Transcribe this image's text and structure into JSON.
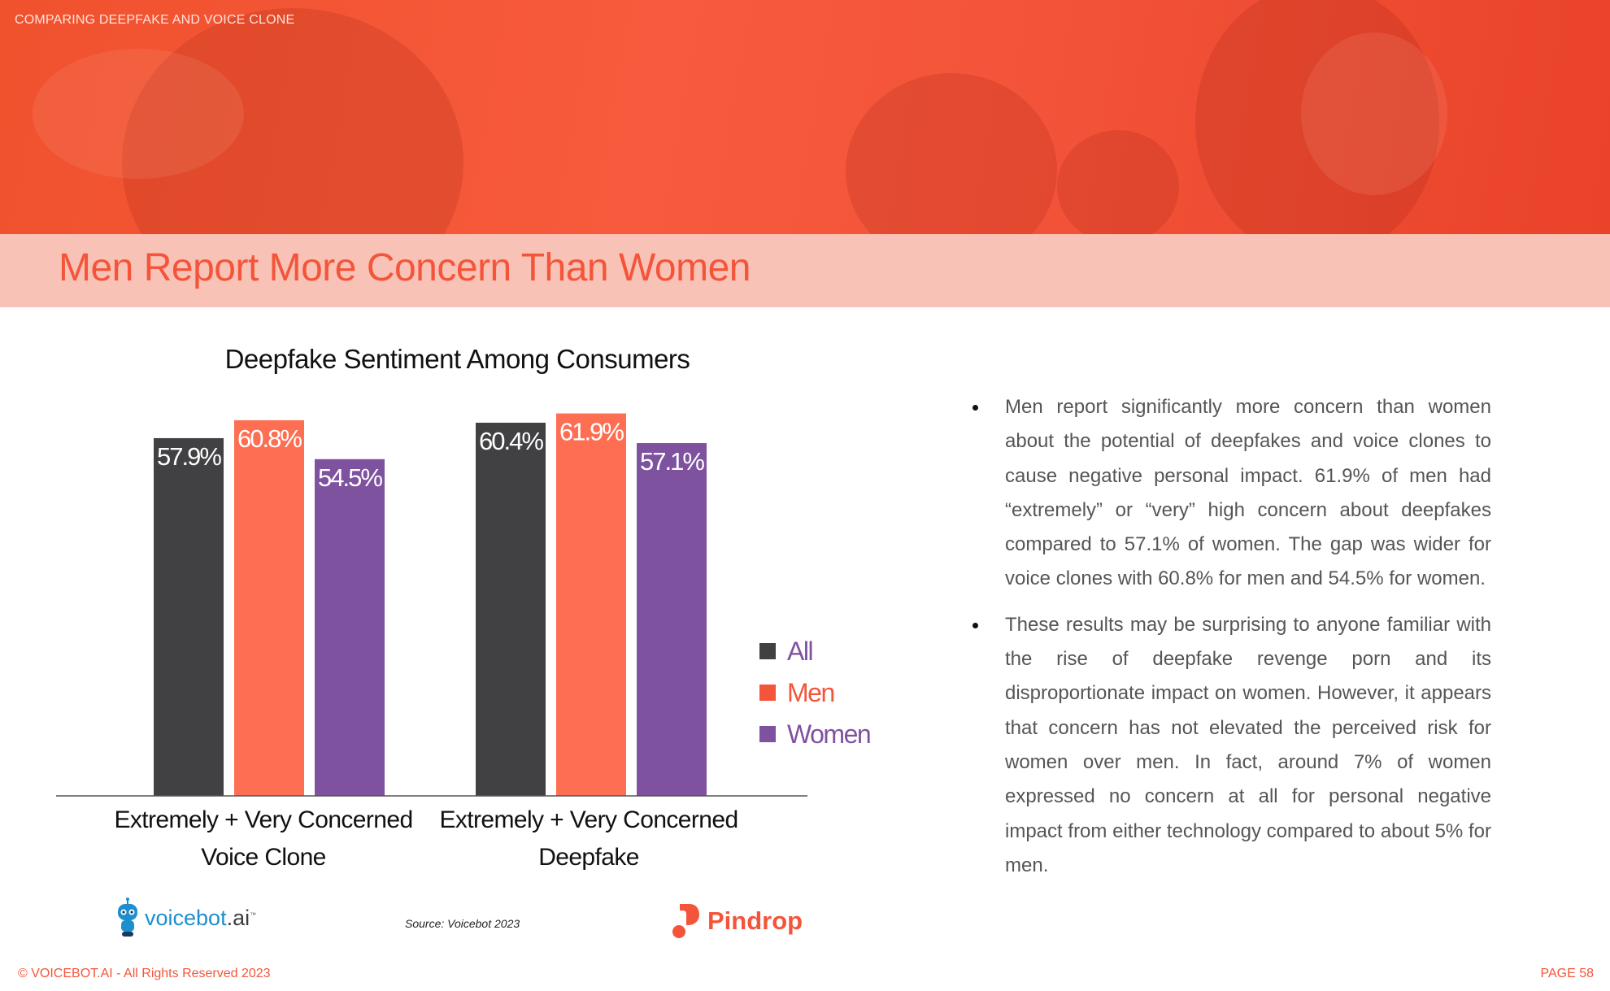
{
  "header": {
    "section_label": "COMPARING DEEPFAKE AND VOICE CLONE",
    "page_title": "Men Report More Concern Than Women"
  },
  "chart_data": {
    "type": "bar",
    "title": "Deepfake Sentiment Among Consumers",
    "categories": [
      [
        "Extremely + Very Concerned",
        "Voice Clone"
      ],
      [
        "Extremely + Very Concerned",
        "Deepfake"
      ]
    ],
    "series": [
      {
        "name": "All",
        "values": [
          57.9,
          60.4
        ],
        "labels": [
          "57.9%",
          "60.4%"
        ],
        "color": "#414042"
      },
      {
        "name": "Men",
        "values": [
          60.8,
          61.9
        ],
        "labels": [
          "60.8%",
          "61.9%"
        ],
        "color": "#f4553a"
      },
      {
        "name": "Women",
        "values": [
          54.5,
          57.1
        ],
        "labels": [
          "54.5%",
          "57.1%"
        ],
        "color": "#7f52a0"
      }
    ],
    "legend_placement": "right",
    "grid": false,
    "y_axis_visible": false
  },
  "colors": {
    "accent": "#f4553a",
    "men_bar": "#fe6e52",
    "all_label": "#7f52a0",
    "women_label": "#7f52a0"
  },
  "source": "Source: Voicebot 2023",
  "logos": {
    "voicebot": {
      "name": "voicebot",
      "suffix": ".ai",
      "mark": "™"
    },
    "pindrop": "Pindrop"
  },
  "bullets": [
    "Men report significantly more concern than women about the potential of deepfakes and voice clones to cause negative personal impact. 61.9% of men had “extremely” or “very” high concern about deepfakes compared to 57.1% of women. The gap was wider for voice clones with 60.8% for men and 54.5% for women.",
    "These results may be surprising to anyone familiar with the rise of deepfake revenge porn and its disproportionate impact on women. However, it appears that concern has not elevated the perceived risk for women over men. In fact, around 7% of women expressed no concern at all for personal negative impact from either technology compared to about 5% for men."
  ],
  "footer": {
    "copyright": "© VOICEBOT.AI - All Rights Reserved 2023",
    "page": "PAGE 58"
  }
}
